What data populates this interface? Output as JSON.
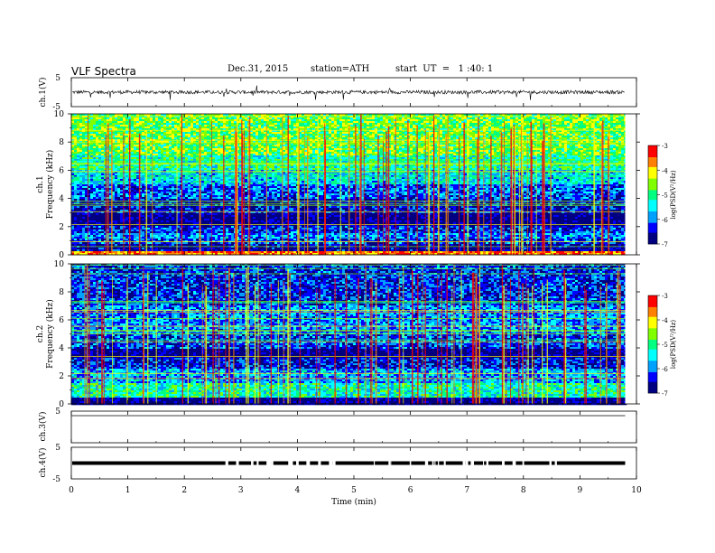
{
  "header": {
    "title": "VLF  Spectra",
    "date": "Dec.31, 2015",
    "station": "station=ATH",
    "start_ut": "start  UT  =   1 :40: 1"
  },
  "chart_data": [
    {
      "type": "line",
      "name": "ch1-waveform",
      "ylabel": "ch.1(V)",
      "yticks": [
        "5",
        "-5"
      ],
      "ylim": [
        -5,
        5
      ],
      "xlim": [
        0,
        10
      ],
      "baseline": 0,
      "data_extent_min": 9.8
    },
    {
      "type": "heatmap",
      "name": "ch1-spectrogram",
      "ylabel": "ch.1\nFrequency  (kHz)",
      "ylabel_lines": [
        "ch.1",
        "Frequency  (kHz)"
      ],
      "ylim": [
        0,
        10
      ],
      "yticks": [
        "0",
        "2",
        "4",
        "6",
        "8",
        "10"
      ],
      "colorbar": {
        "label": "log(PSD(V²/Hz)",
        "range": [
          -7,
          -3
        ],
        "ticks": [
          "-3",
          "-4",
          "-5",
          "-6",
          "-7"
        ]
      },
      "band_levels": [
        {
          "from": 0.0,
          "to": 0.3,
          "level": -3.6
        },
        {
          "from": 0.3,
          "to": 0.8,
          "level": -6.7
        },
        {
          "from": 0.8,
          "to": 1.1,
          "level": -6.2
        },
        {
          "from": 1.1,
          "to": 1.6,
          "level": -5.9
        },
        {
          "from": 1.6,
          "to": 2.1,
          "level": -6.3
        },
        {
          "from": 2.1,
          "to": 3.0,
          "level": -6.9
        },
        {
          "from": 3.0,
          "to": 4.0,
          "level": -6.5
        },
        {
          "from": 4.0,
          "to": 5.0,
          "level": -6.1
        },
        {
          "from": 5.0,
          "to": 6.0,
          "level": -5.5
        },
        {
          "from": 6.0,
          "to": 7.0,
          "level": -5.1
        },
        {
          "from": 7.0,
          "to": 10.0,
          "level": -4.7
        }
      ],
      "xlim": [
        0,
        10
      ]
    },
    {
      "type": "heatmap",
      "name": "ch2-spectrogram",
      "ylabel": "ch.2\nFrequency  (kHz)",
      "ylabel_lines": [
        "ch.2",
        "Frequency  (kHz)"
      ],
      "ylim": [
        0,
        10
      ],
      "yticks": [
        "0",
        "2",
        "4",
        "6",
        "8",
        "10"
      ],
      "colorbar": {
        "label": "log(PSD(V²/Hz)",
        "range": [
          -7,
          -3
        ],
        "ticks": [
          "-3",
          "-4",
          "-5",
          "-6",
          "-7"
        ]
      },
      "band_levels": [
        {
          "from": 0.0,
          "to": 0.5,
          "level": -6.9
        },
        {
          "from": 0.5,
          "to": 1.5,
          "level": -5.2
        },
        {
          "from": 1.5,
          "to": 2.5,
          "level": -5.8
        },
        {
          "from": 2.5,
          "to": 3.3,
          "level": -6.4
        },
        {
          "from": 3.3,
          "to": 3.9,
          "level": -6.9
        },
        {
          "from": 3.9,
          "to": 5.0,
          "level": -6.2
        },
        {
          "from": 5.0,
          "to": 7.0,
          "level": -5.9
        },
        {
          "from": 7.0,
          "to": 10.0,
          "level": -6.3
        }
      ],
      "xlim": [
        0,
        10
      ]
    },
    {
      "type": "line",
      "name": "ch3-waveform",
      "ylabel": "ch.3(V)",
      "yticks": [
        "5"
      ],
      "ylim": [
        -5,
        5
      ],
      "xlim": [
        0,
        10
      ]
    },
    {
      "type": "line",
      "name": "ch4-waveform",
      "ylabel": "ch.4(V)",
      "yticks": [
        "5",
        "-5"
      ],
      "ylim": [
        -5,
        5
      ],
      "baseline": 0,
      "xlim": [
        0,
        10
      ]
    }
  ],
  "xaxis": {
    "label": "Time  (min)",
    "ticks": [
      "0",
      "1",
      "2",
      "3",
      "4",
      "5",
      "6",
      "7",
      "8",
      "9",
      "10"
    ],
    "range": [
      0,
      10
    ]
  },
  "colors": {
    "axis": "#000000",
    "colormap": [
      "#000080",
      "#0000ff",
      "#00a0ff",
      "#00ffff",
      "#00ff80",
      "#80ff00",
      "#ffff00",
      "#ff8000",
      "#ff0000",
      "#ffffff"
    ]
  }
}
